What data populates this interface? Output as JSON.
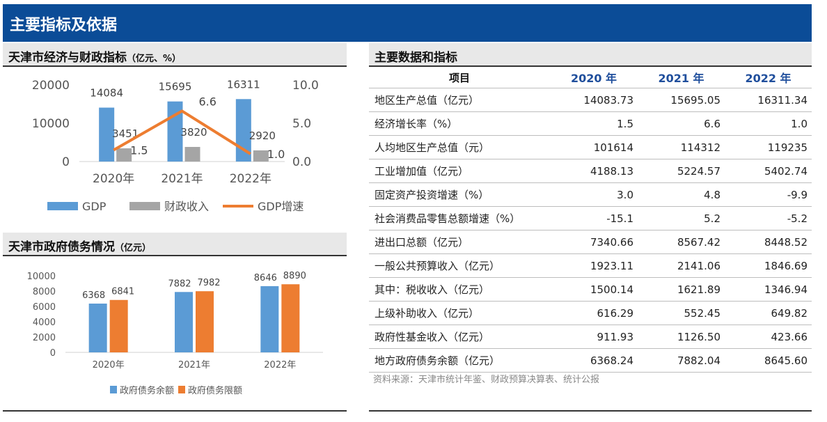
{
  "banner": {
    "title": "主要指标及依据"
  },
  "chart1_title": {
    "main": "天津市经济与财政指标",
    "unit": "（亿元、%）"
  },
  "chart2_title": {
    "main": "天津市政府债务情况",
    "unit": "（亿元）"
  },
  "table": {
    "title": "主要数据和指标",
    "headers": [
      "项目",
      "2020 年",
      "2021 年",
      "2022 年"
    ],
    "rows": [
      [
        "地区生产总值（亿元）",
        "14083.73",
        "15695.05",
        "16311.34"
      ],
      [
        "经济增长率（%）",
        "1.5",
        "6.6",
        "1.0"
      ],
      [
        "人均地区生产总值（元）",
        "101614",
        "114312",
        "119235"
      ],
      [
        "工业增加值（亿元）",
        "4188.13",
        "5224.57",
        "5402.74"
      ],
      [
        "固定资产投资增速（%）",
        "3.0",
        "4.8",
        "-9.9"
      ],
      [
        "社会消费品零售总额增速（%）",
        "-15.1",
        "5.2",
        "-5.2"
      ],
      [
        "进出口总额（亿元）",
        "7340.66",
        "8567.42",
        "8448.52"
      ],
      [
        "一般公共预算收入（亿元）",
        "1923.11",
        "2141.06",
        "1846.69"
      ],
      [
        "其中：税收收入（亿元）",
        "1500.14",
        "1621.89",
        "1346.94"
      ],
      [
        "上级补助收入（亿元）",
        "616.29",
        "552.45",
        "649.82"
      ],
      [
        "政府性基金收入（亿元）",
        "911.93",
        "1126.50",
        "423.66"
      ],
      [
        "地方政府债务余额（亿元）",
        "6368.24",
        "7882.04",
        "8645.60"
      ]
    ],
    "source": "资料来源：天津市统计年鉴、财政预算决算表、统计公报"
  },
  "colors": {
    "banner": "#0b4c97",
    "blue": "#5b9bd5",
    "gray": "#a5a5a5",
    "orange": "#ed7d31",
    "header_text": "#1f4e9c"
  },
  "chart_data": [
    {
      "type": "bar",
      "categories": [
        "2020年",
        "2021年",
        "2022年"
      ],
      "series": [
        {
          "name": "GDP",
          "type": "bar",
          "axis": "left",
          "values": [
            14084,
            15695,
            16311
          ],
          "color": "#5b9bd5"
        },
        {
          "name": "财政收入",
          "type": "bar",
          "axis": "left",
          "values": [
            3451,
            3820,
            2920
          ],
          "color": "#a5a5a5"
        },
        {
          "name": "GDP增速",
          "type": "line",
          "axis": "right",
          "values": [
            1.5,
            6.6,
            1.0
          ],
          "color": "#ed7d31"
        }
      ],
      "data_labels": {
        "GDP": [
          "14084",
          "15695",
          "16311"
        ],
        "财政收入": [
          "3451",
          "3820",
          "2920"
        ],
        "GDP增速": [
          "1.5",
          "6.6",
          "1.0"
        ]
      },
      "y_ticks": [
        "0",
        "10000",
        "20000"
      ],
      "y2_ticks": [
        "0.0",
        "5.0",
        "10.0"
      ],
      "ylim": [
        0,
        20000
      ],
      "y2lim": [
        0,
        10
      ],
      "legend": [
        "GDP",
        "财政收入",
        "GDP增速"
      ],
      "legend_position": "bottom",
      "grid": false
    },
    {
      "type": "bar",
      "categories": [
        "2020年",
        "2021年",
        "2022年"
      ],
      "series": [
        {
          "name": "政府债务余额",
          "values": [
            6368,
            7882,
            8646
          ],
          "color": "#5b9bd5"
        },
        {
          "name": "政府债务限额",
          "values": [
            6841,
            7982,
            8890
          ],
          "color": "#ed7d31"
        }
      ],
      "data_labels": {
        "政府债务余额": [
          "6368",
          "7882",
          "8646"
        ],
        "政府债务限额": [
          "6841",
          "7982",
          "8890"
        ]
      },
      "y_ticks": [
        "0",
        "2000",
        "4000",
        "6000",
        "8000",
        "10000"
      ],
      "ylim": [
        0,
        10000
      ],
      "legend": [
        "政府债务余额",
        "政府债务限额"
      ],
      "legend_position": "bottom",
      "grid": false
    }
  ]
}
